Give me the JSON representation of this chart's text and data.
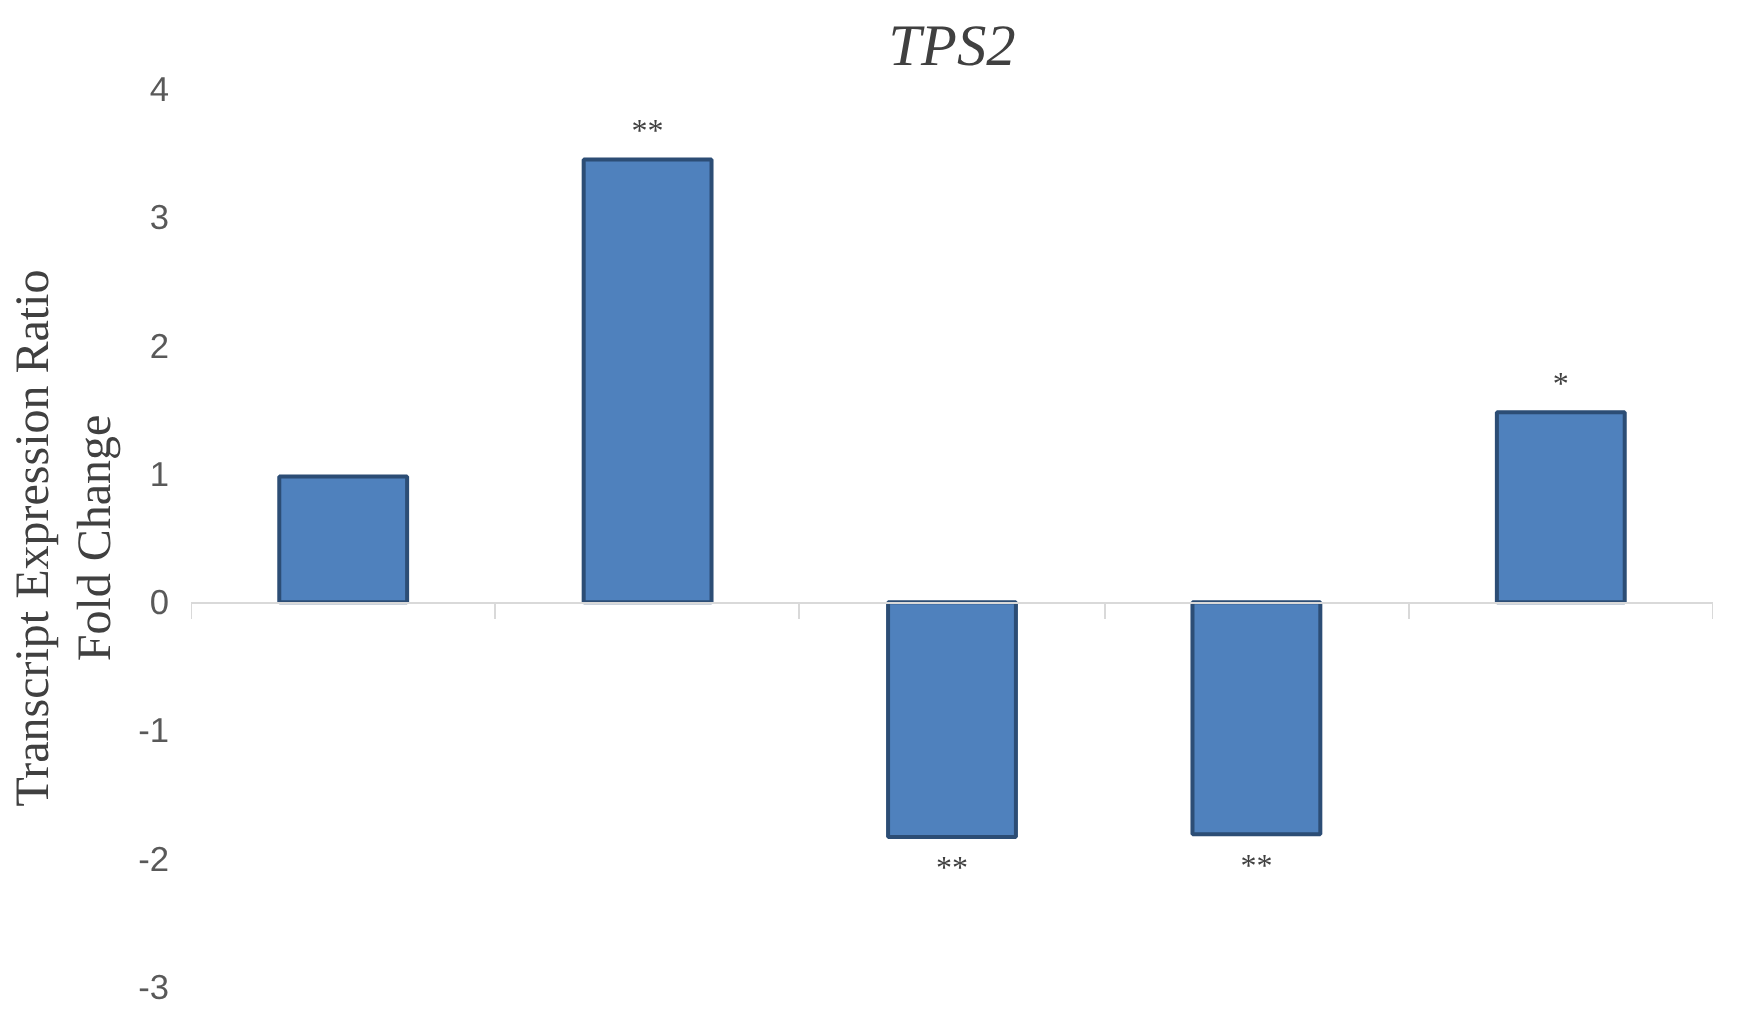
{
  "chart_data": {
    "type": "bar",
    "title": "TPS2",
    "ylabel": "Transcript Expression Ratio\nFold Change",
    "categories": [
      null,
      null,
      null,
      null,
      null
    ],
    "values": [
      0.98,
      3.45,
      -1.83,
      -1.81,
      1.48
    ],
    "value_labels": [
      null,
      "**",
      "**",
      "**",
      "*"
    ],
    "color": "#4f81bd",
    "ylim": [
      -3,
      4
    ],
    "yticks": [
      -3,
      -2,
      -1,
      0,
      1,
      2,
      3,
      4
    ]
  }
}
